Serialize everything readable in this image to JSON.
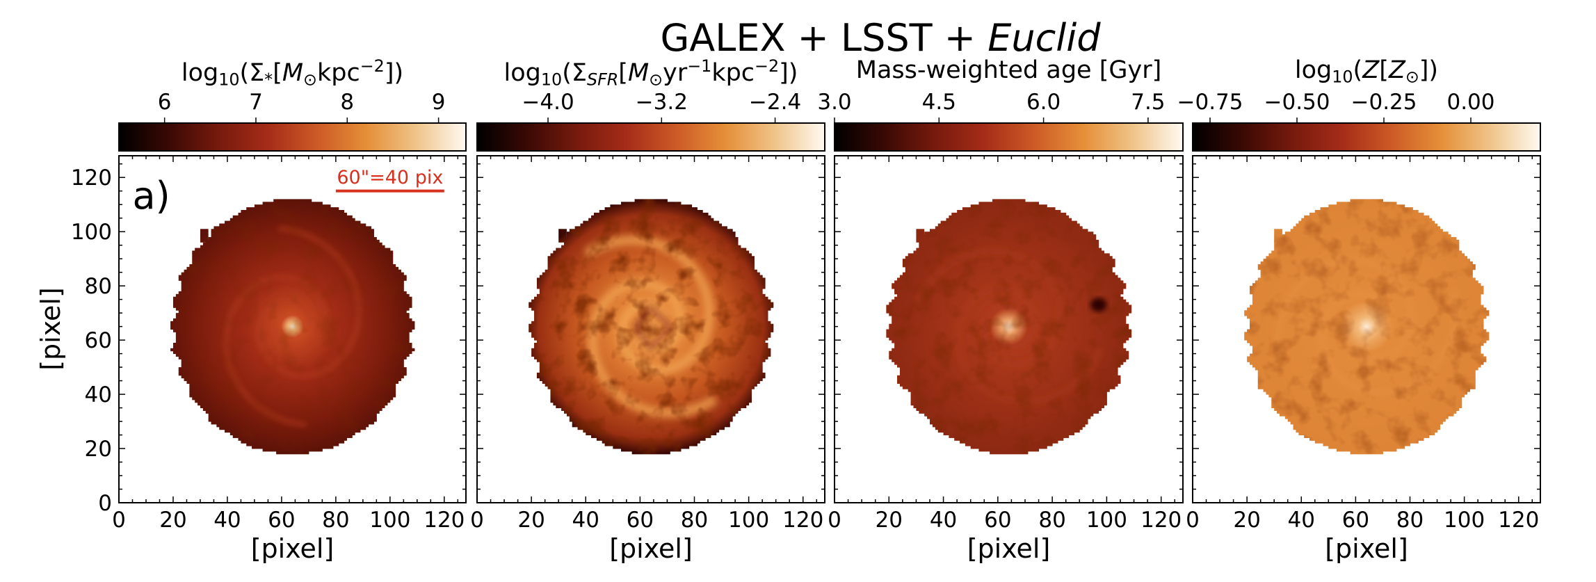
{
  "suptitle": [
    {
      "t": "GALEX + LSST + "
    },
    {
      "i": "Euclid"
    }
  ],
  "colormap_stops": [
    "#000000",
    "#3a0904",
    "#761a0d",
    "#a52c18",
    "#cc5a26",
    "#e58f38",
    "#efc489",
    "#fffaf2"
  ],
  "annotation_color": "#d8301e",
  "chart_data": {
    "type": "heatmap",
    "title": "GALEX + LSST + Euclid",
    "panels": [
      {
        "panel_label": "a)",
        "scale_bar": "60\"=40 pix",
        "colorbar_label": [
          {
            "t": "log"
          },
          {
            "sub": "10"
          },
          {
            "t": "(Σ"
          },
          {
            "sub": "*"
          },
          {
            "t": "["
          },
          {
            "i": "M"
          },
          {
            "sub": "⊙"
          },
          {
            "t": "kpc"
          },
          {
            "sup": "−2"
          },
          {
            "t": "])"
          }
        ],
        "colorbar_range": [
          5.5,
          9.3
        ],
        "colorbar_ticks": [
          6,
          7,
          8,
          9
        ],
        "colorbar_ticklabels": [
          "6",
          "7",
          "8",
          "9"
        ],
        "xlabel": "[pixel]",
        "ylabel": "[pixel]",
        "xlim": [
          0,
          128
        ],
        "ylim": [
          0,
          128
        ],
        "xticks": [
          "0",
          "20",
          "40",
          "60",
          "80",
          "100",
          "120"
        ],
        "yticks": [
          "0",
          "20",
          "40",
          "60",
          "80",
          "100",
          "120"
        ]
      },
      {
        "colorbar_label": [
          {
            "t": "log"
          },
          {
            "sub": "10"
          },
          {
            "t": "(Σ"
          },
          {
            "sub": "SFR",
            "italic": true
          },
          {
            "t": "["
          },
          {
            "i": "M"
          },
          {
            "sub": "⊙"
          },
          {
            "t": "yr"
          },
          {
            "sup": "−1"
          },
          {
            "t": "kpc"
          },
          {
            "sup": "−2"
          },
          {
            "t": "])"
          }
        ],
        "colorbar_range": [
          -4.5,
          -2.05
        ],
        "colorbar_ticks": [
          -4.0,
          -3.2,
          -2.4
        ],
        "colorbar_ticklabels": [
          "−4.0",
          "−3.2",
          "−2.4"
        ],
        "xlabel": "[pixel]",
        "xlim": [
          0,
          128
        ],
        "ylim": [
          0,
          128
        ],
        "xticks": [
          "0",
          "20",
          "40",
          "60",
          "80",
          "100",
          "120"
        ]
      },
      {
        "colorbar_label": [
          {
            "t": "Mass-weighted age [Gyr]"
          }
        ],
        "colorbar_range": [
          3.0,
          8.0
        ],
        "colorbar_ticks": [
          3.0,
          4.5,
          6.0,
          7.5
        ],
        "colorbar_ticklabels": [
          "3.0",
          "4.5",
          "6.0",
          "7.5"
        ],
        "xlabel": "[pixel]",
        "xlim": [
          0,
          128
        ],
        "ylim": [
          0,
          128
        ],
        "xticks": [
          "0",
          "20",
          "40",
          "60",
          "80",
          "100",
          "120"
        ]
      },
      {
        "colorbar_label": [
          {
            "t": "log"
          },
          {
            "sub": "10"
          },
          {
            "t": "("
          },
          {
            "i": "Z"
          },
          {
            "t": "["
          },
          {
            "i": "Z"
          },
          {
            "sub": "⊙"
          },
          {
            "t": "])"
          }
        ],
        "colorbar_range": [
          -0.8,
          0.2
        ],
        "colorbar_ticks": [
          -0.75,
          -0.5,
          -0.25,
          0.0
        ],
        "colorbar_ticklabels": [
          "−0.75",
          "−0.50",
          "−0.25",
          "0.00"
        ],
        "xlabel": "[pixel]",
        "xlim": [
          0,
          128
        ],
        "ylim": [
          0,
          128
        ],
        "xticks": [
          "0",
          "20",
          "40",
          "60",
          "80",
          "100",
          "120"
        ]
      }
    ]
  }
}
